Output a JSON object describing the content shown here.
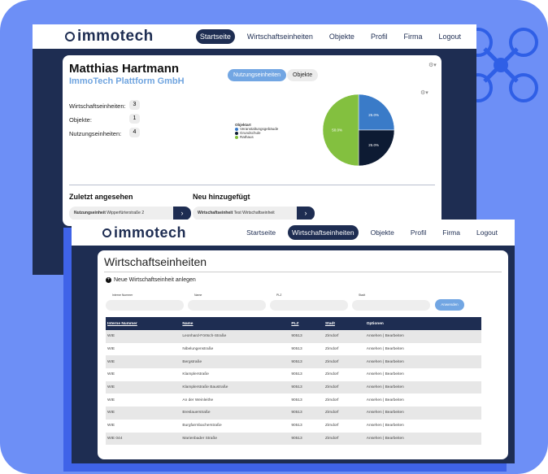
{
  "back": {
    "logo": "immotech",
    "nav": [
      "Startseite",
      "Wirtschaftseinheiten",
      "Objekte",
      "Profil",
      "Firma",
      "Logout"
    ],
    "active_nav": "Startseite",
    "user_name": "Matthias Hartmann",
    "company": "ImmoTech Plattform GmbH",
    "toggle": {
      "active": "Nutzungseinheiten",
      "other": "Objekte"
    },
    "stats": [
      {
        "label": "Wirtschaftseinheiten:",
        "value": "3"
      },
      {
        "label": "Objekte:",
        "value": "1"
      },
      {
        "label": "Nutzungseinheiten:",
        "value": "4"
      }
    ],
    "gear_icon": "gear-dropdown-icon",
    "recent": {
      "title": "Zuletzt angesehen",
      "type": "Nutzungseinheit",
      "name": "Wipperfürterstraße 2"
    },
    "added": {
      "title": "Neu hinzugefügt",
      "type": "Wirtschaftseinheit",
      "name": "Test Wirtschaftseinheit"
    }
  },
  "chart_data": {
    "type": "pie",
    "legend_title": "Objektart",
    "legend_position": "left",
    "categories": [
      "Veranstaltungsgebäude",
      "Grundschule",
      "Rathaus"
    ],
    "values": [
      25,
      25,
      50
    ],
    "labels": [
      "25.0%",
      "25.0%",
      "50.0%"
    ],
    "colors": [
      "#3a7bc8",
      "#0d1b33",
      "#83c03f"
    ]
  },
  "front": {
    "logo": "immotech",
    "nav": [
      "Startseite",
      "Wirtschaftseinheiten",
      "Objekte",
      "Profil",
      "Firma",
      "Logout"
    ],
    "active_nav": "Wirtschaftseinheiten",
    "page_title": "Wirtschaftseinheiten",
    "new_label": "Neue Wirtschaftseinheit anlegen",
    "filters": [
      "Interne Nummer",
      "Name",
      "PLZ",
      "Stadt"
    ],
    "apply": "Anwenden",
    "columns": [
      "Interne Nummer",
      "Name",
      "PLZ",
      "Stadt",
      "Optionen"
    ],
    "rows": [
      [
        "WIE",
        "Leonhard-Förtsch-Straße",
        "90513",
        "Zirndorf"
      ],
      [
        "WIE",
        "Nibelungenstraße",
        "90513",
        "Zirndorf"
      ],
      [
        "WIE",
        "Bergstraße",
        "90513",
        "Zirndorf"
      ],
      [
        "WIE",
        "Klamplerstraße",
        "90513",
        "Zirndorf"
      ],
      [
        "WIE",
        "Klamplerstraße Baustraße",
        "90513",
        "Zirndorf"
      ],
      [
        "WIE",
        "An der Weinleithe",
        "90513",
        "Zirndorf"
      ],
      [
        "WIE",
        "Breslauerstraße",
        "90513",
        "Zirndorf"
      ],
      [
        "WIE",
        "Burgfarrnbacherstraße",
        "90513",
        "Zirndorf"
      ],
      [
        "WIE 044",
        "Marienbader Straße",
        "90513",
        "Zirndorf"
      ]
    ],
    "opt_view": "Ansehen",
    "opt_sep": " | ",
    "opt_edit": "Bearbeiten"
  },
  "accent": "#1e2d52",
  "background": "#6d8ff6"
}
